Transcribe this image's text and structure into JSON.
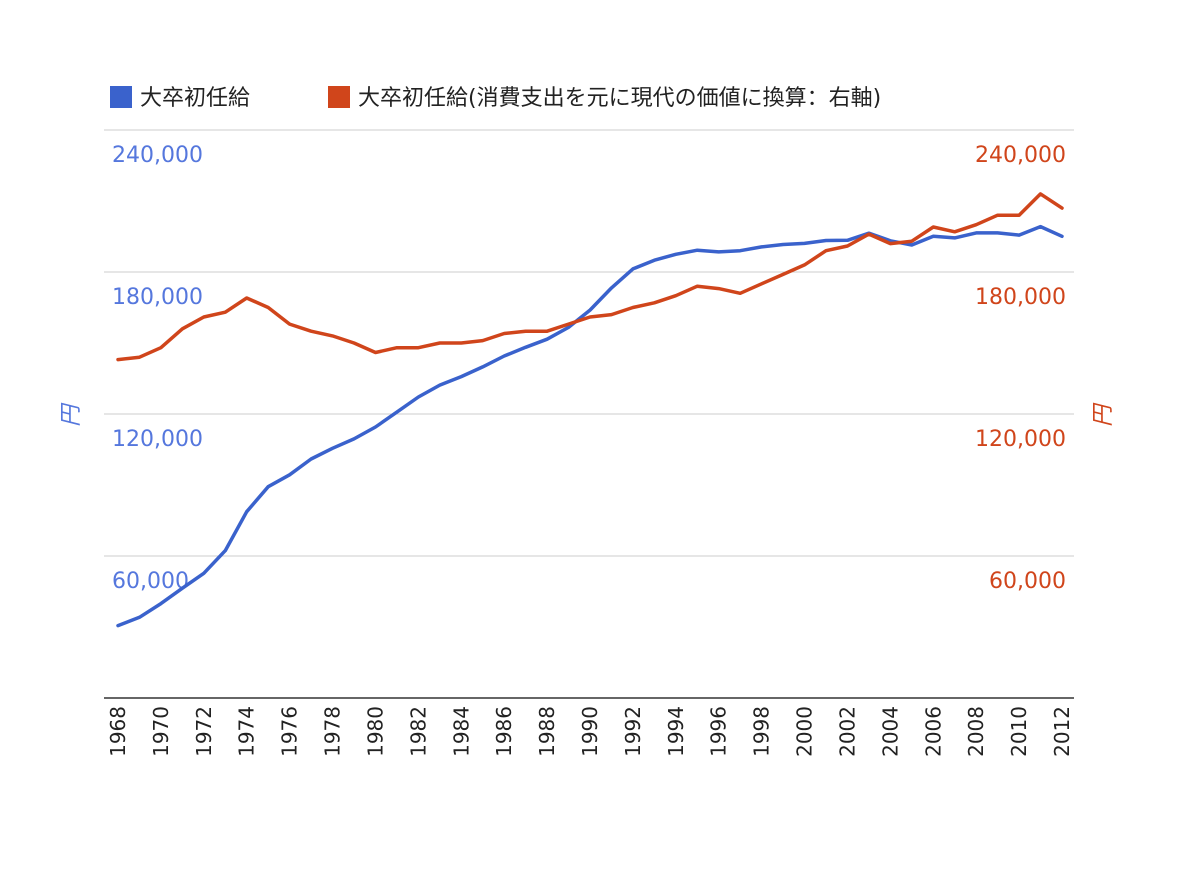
{
  "chart_data": {
    "type": "line",
    "legend": {
      "position": "top",
      "entries": [
        {
          "label": "大卒初任給",
          "color": "#3a62cc"
        },
        {
          "label": "大卒初任給(消費支出を元に現代の価値に換算：右軸)",
          "color": "#d0451b"
        }
      ]
    },
    "x": [
      1968,
      1969,
      1970,
      1971,
      1972,
      1973,
      1974,
      1975,
      1976,
      1977,
      1978,
      1979,
      1980,
      1981,
      1982,
      1983,
      1984,
      1985,
      1986,
      1987,
      1988,
      1989,
      1990,
      1991,
      1992,
      1993,
      1994,
      1995,
      1996,
      1997,
      1998,
      1999,
      2000,
      2001,
      2002,
      2003,
      2004,
      2005,
      2006,
      2007,
      2008,
      2009,
      2010,
      2011,
      2012
    ],
    "x_tick_labels": [
      "1968",
      "1970",
      "1972",
      "1974",
      "1976",
      "1978",
      "1980",
      "1982",
      "1984",
      "1986",
      "1988",
      "1990",
      "1992",
      "1994",
      "1996",
      "1998",
      "2000",
      "2002",
      "2004",
      "2006",
      "2008",
      "2010",
      "2012"
    ],
    "series": [
      {
        "name": "大卒初任給",
        "axis": "left",
        "color": "#3a62cc",
        "values": [
          30600,
          34100,
          39900,
          46400,
          52700,
          62300,
          78700,
          89300,
          94300,
          101000,
          105500,
          109500,
          114500,
          120800,
          127200,
          132200,
          135800,
          139900,
          144500,
          148200,
          151600,
          156600,
          163900,
          173300,
          181300,
          185000,
          187500,
          189200,
          188500,
          189000,
          190600,
          191600,
          192100,
          193300,
          193400,
          196400,
          193200,
          191400,
          195100,
          194400,
          196500,
          196500,
          195600,
          199200,
          195100
        ]
      },
      {
        "name": "大卒初任給(消費支出を元に現代の価値に換算：右軸)",
        "axis": "right",
        "color": "#d0451b",
        "values": [
          143000,
          144000,
          148000,
          156000,
          161000,
          163000,
          169000,
          165000,
          158000,
          155000,
          153000,
          150000,
          146000,
          148000,
          148000,
          150000,
          150000,
          151000,
          154000,
          155000,
          155000,
          158000,
          161000,
          162000,
          165000,
          167000,
          170000,
          174000,
          173000,
          171000,
          175000,
          179000,
          183000,
          189000,
          191000,
          196000,
          192000,
          193000,
          199000,
          197000,
          200000,
          204000,
          204000,
          213000,
          207000
        ]
      }
    ],
    "y_left": {
      "label": "円",
      "ylim": [
        0,
        240000
      ],
      "tick_labels": [
        "240,000",
        "180,000",
        "120,000",
        "60,000"
      ],
      "color": "#5577dd"
    },
    "y_right": {
      "label": "円",
      "ylim": [
        0,
        240000
      ],
      "tick_labels": [
        "240,000",
        "180,000",
        "120,000",
        "60,000"
      ],
      "color": "#d0451b"
    },
    "grid": true
  }
}
